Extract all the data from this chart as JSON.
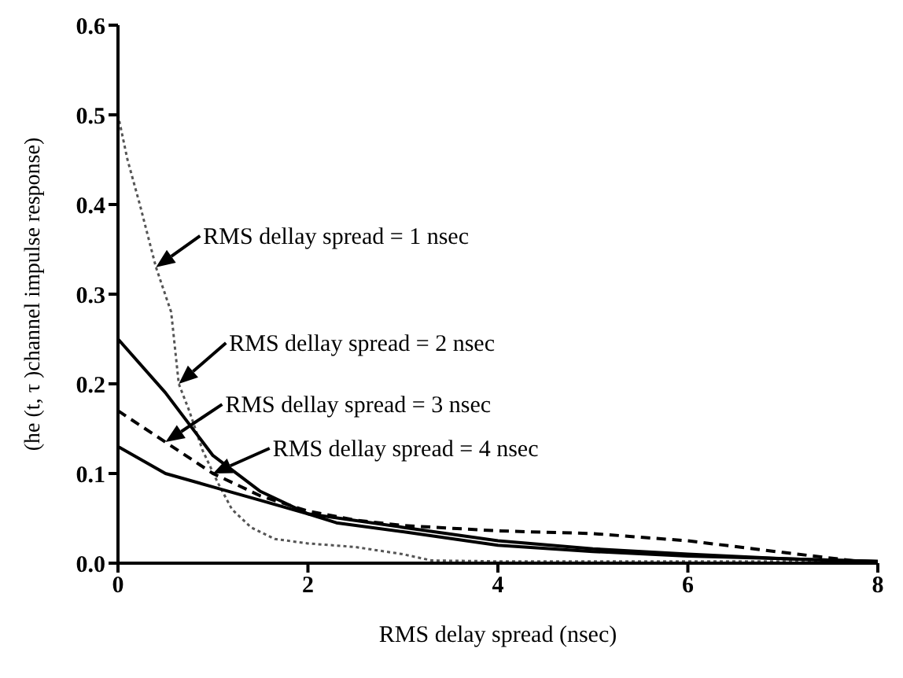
{
  "chart_data": {
    "type": "line",
    "xlabel": "RMS delay spread (nsec)",
    "ylabel": "(he (t, τ )channel impulse response)",
    "xlim": [
      0,
      8
    ],
    "xticks": [
      0,
      2,
      4,
      6,
      8
    ],
    "ylim": [
      0,
      0.6
    ],
    "yticks": [
      {
        "value": 0,
        "label": "0.0"
      },
      0.1,
      0.2,
      0.3,
      0.4,
      0.5,
      0.6
    ],
    "grid": false,
    "legend": false,
    "marker": "none",
    "series": [
      {
        "color": "#555555",
        "line_style": "dotted",
        "x": [
          0,
          0.1,
          0.23,
          0.4,
          0.56,
          0.64,
          0.75,
          0.89,
          1.05,
          1.2,
          1.4,
          1.65,
          2,
          2.5,
          3,
          3.3,
          4,
          5,
          6,
          7,
          8
        ],
        "values": [
          0.5,
          0.45,
          0.4,
          0.33,
          0.28,
          0.2,
          0.17,
          0.126,
          0.09,
          0.06,
          0.04,
          0.027,
          0.022,
          0.018,
          0.01,
          0.003,
          0.002,
          0.002,
          0.002,
          0.002,
          0.002
        ]
      },
      {
        "color": "#000000",
        "line_style": "solid",
        "x": [
          0,
          0.5,
          1,
          1.5,
          2,
          2.3,
          3,
          4,
          5,
          6,
          7,
          8
        ],
        "values": [
          0.25,
          0.19,
          0.12,
          0.08,
          0.055,
          0.045,
          0.035,
          0.02,
          0.013,
          0.008,
          0.005,
          0.002
        ]
      },
      {
        "color": "#000000",
        "line_style": "dashed",
        "x": [
          0,
          0.5,
          1,
          1.5,
          2,
          2.5,
          3,
          4,
          5,
          6,
          7,
          7.8
        ],
        "values": [
          0.17,
          0.135,
          0.1,
          0.075,
          0.058,
          0.048,
          0.042,
          0.036,
          0.033,
          0.025,
          0.012,
          0.002
        ]
      },
      {
        "color": "#000000",
        "line_style": "solid",
        "x": [
          0,
          0.5,
          1,
          1.5,
          2,
          3,
          4,
          5,
          6,
          7,
          8
        ],
        "values": [
          0.13,
          0.1,
          0.085,
          0.07,
          0.055,
          0.04,
          0.025,
          0.016,
          0.01,
          0.005,
          0.002
        ]
      }
    ],
    "annotations": [
      {
        "text": "RMS dellay spread = 1 nsec",
        "x": 0.4,
        "y": 0.33
      },
      {
        "text": "RMS dellay spread = 2 nsec",
        "x": 0.64,
        "y": 0.2
      },
      {
        "text": "RMS dellay spread = 3 nsec",
        "x": 0.5,
        "y": 0.135
      },
      {
        "text": "RMS dellay spread = 4 nsec",
        "x": 1,
        "y": 0.1
      }
    ]
  }
}
